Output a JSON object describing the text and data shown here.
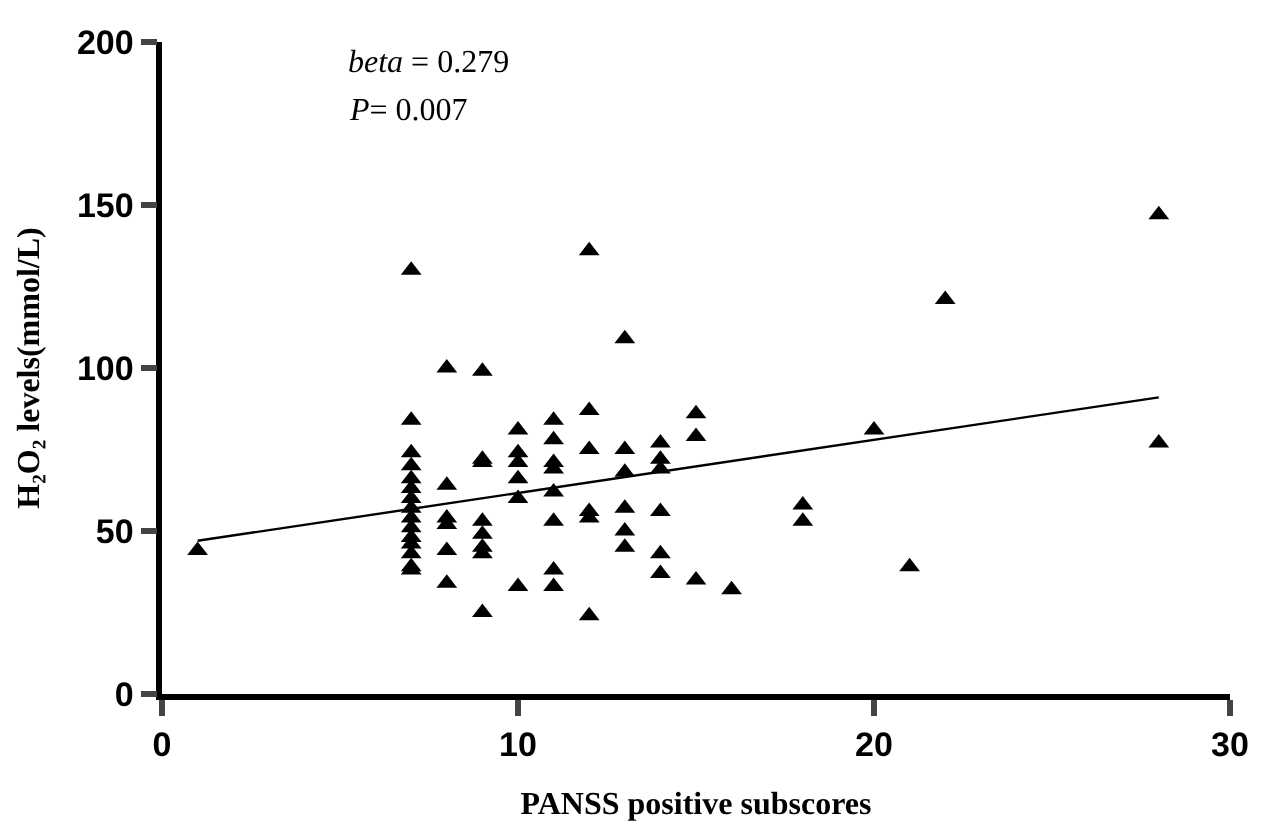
{
  "chart_data": {
    "type": "scatter",
    "xlabel": "PANSS positive subscores",
    "ylabel": "H₂O₂ levels(mmol/L)",
    "annotations": [
      "beta = 0.279",
      "P= 0.007"
    ],
    "xlim": [
      0,
      30
    ],
    "xticks": [
      0,
      10,
      20,
      30
    ],
    "ylim": [
      0,
      200
    ],
    "yticks": [
      0,
      50,
      100,
      150,
      200
    ],
    "legend": false,
    "series": [
      {
        "color": "#000000",
        "marker": "triangle",
        "x": [
          1,
          7,
          7,
          7,
          7,
          7,
          7,
          7,
          7,
          7,
          7,
          7,
          7,
          7,
          7,
          7,
          8,
          8,
          8,
          8,
          8,
          8,
          9,
          9,
          9,
          9,
          9,
          9,
          9,
          9,
          10,
          10,
          10,
          10,
          10,
          10,
          11,
          11,
          11,
          11,
          11,
          11,
          11,
          11,
          12,
          12,
          12,
          12,
          12,
          12,
          13,
          13,
          13,
          13,
          13,
          13,
          14,
          14,
          14,
          14,
          14,
          14,
          15,
          15,
          15,
          16,
          18,
          18,
          20,
          21,
          22,
          28,
          28
        ],
        "values": [
          44,
          130,
          84,
          74,
          70,
          66,
          63,
          60,
          57,
          54,
          51,
          46,
          39,
          38,
          48,
          43,
          100,
          64,
          54,
          52,
          44,
          34,
          99,
          72,
          71,
          53,
          49,
          45,
          43,
          25,
          81,
          74,
          71,
          66,
          60,
          33,
          84,
          78,
          71,
          69,
          62,
          53,
          38,
          33,
          136,
          87,
          75,
          56,
          54,
          24,
          109,
          75,
          68,
          57,
          50,
          45,
          77,
          72,
          69,
          56,
          43,
          37,
          86,
          79,
          35,
          32,
          58,
          53,
          81,
          39,
          121,
          147,
          77
        ]
      },
      {
        "type": "line",
        "marker": "none",
        "color": "#000000",
        "x": [
          1,
          28
        ],
        "values": [
          47,
          91
        ]
      }
    ]
  }
}
